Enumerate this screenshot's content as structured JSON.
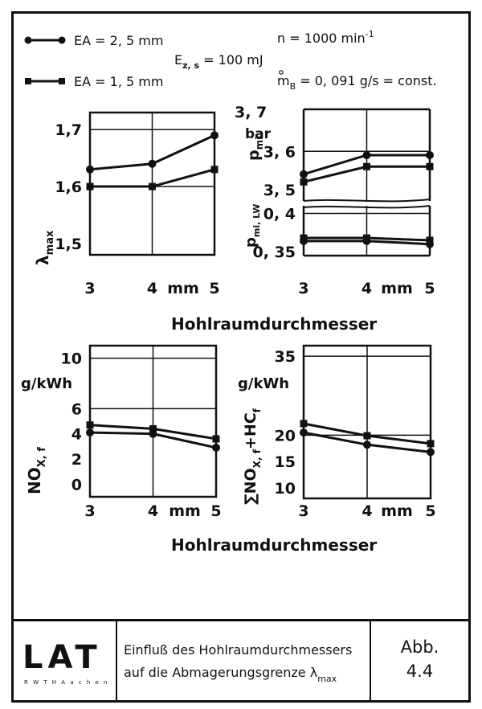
{
  "legend": {
    "series_a": "EA = 2, 5 mm",
    "series_b": "EA = 1, 5 mm",
    "ezs_main": "E",
    "ezs_sub": "z, s",
    "ezs_rest": " = 100 mJ",
    "n_text": "n  = 1000 min",
    "n_sup": "-1",
    "mb_main": "m",
    "mb_sub": "B",
    "mb_rest": " = 0, 091 g/s = const."
  },
  "xlabel_top": "Hohlraumdurchmesser",
  "xlabel_bottom": "Hohlraumdurchmesser",
  "chart_data": [
    {
      "type": "line",
      "ylabel_main": "λ",
      "ylabel_sub": "max",
      "x_ticks": [
        "3",
        "4",
        "5"
      ],
      "x_unit": "mm",
      "y_ticks": [
        "1,5",
        "1,6",
        "1,7"
      ],
      "xlim": [
        3,
        5
      ],
      "ylim": [
        1.48,
        1.73
      ],
      "x": [
        3,
        4,
        5
      ],
      "series": [
        {
          "name": "EA = 2, 5 mm",
          "marker": "circle",
          "values": [
            1.63,
            1.64,
            1.69
          ]
        },
        {
          "name": "EA = 1, 5 mm",
          "marker": "square",
          "values": [
            1.6,
            1.6,
            1.63
          ]
        }
      ]
    },
    {
      "type": "line",
      "ylabel_main": "p",
      "ylabel_sub": "mi",
      "ylabel_unit": "bar",
      "x_ticks": [
        "3",
        "4",
        "5"
      ],
      "x_unit": "mm",
      "y_ticks": [
        "3, 5",
        "3, 6",
        "3, 7"
      ],
      "xlim": [
        3,
        5
      ],
      "ylim": [
        3.47,
        3.71
      ],
      "x": [
        3,
        4,
        5
      ],
      "series": [
        {
          "name": "EA = 2, 5 mm",
          "marker": "circle",
          "values": [
            3.54,
            3.59,
            3.59
          ]
        },
        {
          "name": "EA = 1, 5 mm",
          "marker": "square",
          "values": [
            3.52,
            3.56,
            3.56
          ]
        }
      ]
    },
    {
      "type": "line",
      "ylabel_main": "p",
      "ylabel_sub": "mi, LW",
      "x_ticks": [
        "3",
        "4",
        "5"
      ],
      "x_unit": "mm",
      "y_ticks": [
        "0, 35",
        "0, 4"
      ],
      "xlim": [
        3,
        5
      ],
      "ylim": [
        0.345,
        0.41
      ],
      "x": [
        3,
        4,
        5
      ],
      "series": [
        {
          "name": "EA = 2, 5 mm",
          "marker": "circle",
          "values": [
            0.364,
            0.364,
            0.36
          ]
        },
        {
          "name": "EA = 1, 5 mm",
          "marker": "square",
          "values": [
            0.368,
            0.368,
            0.365
          ]
        }
      ]
    },
    {
      "type": "line",
      "ylabel_main": "NO",
      "ylabel_sub": "X, f",
      "ylabel_unit": "g/kWh",
      "x_ticks": [
        "3",
        "4",
        "5"
      ],
      "x_unit": "mm",
      "y_ticks": [
        "0",
        "2",
        "4",
        "6",
        "10"
      ],
      "xlim": [
        3,
        5
      ],
      "ylim": [
        -1,
        11
      ],
      "x": [
        3,
        4,
        5
      ],
      "series": [
        {
          "name": "EA = 2, 5 mm",
          "marker": "circle",
          "values": [
            4.1,
            4.0,
            2.9
          ]
        },
        {
          "name": "EA = 1, 5 mm",
          "marker": "square",
          "values": [
            4.7,
            4.4,
            3.6
          ]
        }
      ]
    },
    {
      "type": "line",
      "ylabel_main": "∑NO",
      "ylabel_sub": "X, f",
      "ylabel_mid": "+HC",
      "ylabel_sub2": "f",
      "ylabel_unit": "g/kWh",
      "x_ticks": [
        "3",
        "4",
        "5"
      ],
      "x_unit": "mm",
      "y_ticks": [
        "10",
        "15",
        "20",
        "35"
      ],
      "xlim": [
        3,
        5
      ],
      "ylim": [
        8,
        37
      ],
      "x": [
        3,
        4,
        5
      ],
      "series": [
        {
          "name": "EA = 2, 5 mm",
          "marker": "circle",
          "values": [
            20.5,
            18.2,
            16.8
          ]
        },
        {
          "name": "EA = 1, 5 mm",
          "marker": "square",
          "values": [
            22.2,
            19.9,
            18.4
          ]
        }
      ]
    }
  ],
  "footer": {
    "logo_text": "LAT",
    "logo_sub": "R W T H  A a c h e n",
    "caption_line1": "Einfluß des Hohlraumdurchmessers",
    "caption_line2": "auf die Abmagerungsgrenze λ",
    "caption_sub": "max",
    "abb_label": "Abb.",
    "abb_number": "4.4"
  }
}
